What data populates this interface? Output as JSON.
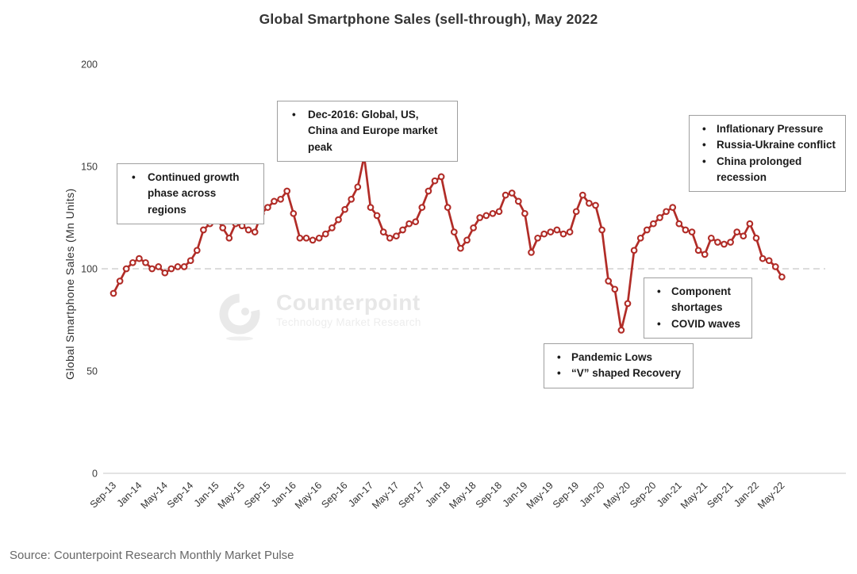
{
  "title": "Global Smartphone Sales (sell-through), May 2022",
  "source_note": "Source: Counterpoint Research Monthly Market Pulse",
  "watermark": {
    "brand": "Counterpoint",
    "tagline": "Technology Market Research"
  },
  "annotations": {
    "growth": {
      "items": [
        "Continued growth phase across regions"
      ]
    },
    "dec2016_peak": {
      "items": [
        "Dec-2016: Global, US, China and Europe market peak"
      ]
    },
    "inflation": {
      "items": [
        "Inflationary Pressure",
        "Russia-Ukraine conflict",
        "China prolonged recession"
      ]
    },
    "shortages": {
      "items": [
        "Component shortages",
        "COVID waves"
      ]
    },
    "pandemic": {
      "items": [
        "Pandemic Lows",
        "“V” shaped Recovery"
      ]
    }
  },
  "chart_data": {
    "type": "line",
    "title": "Global Smartphone Sales (sell-through), May 2022",
    "xlabel": "",
    "ylabel": "Global Smartphone Sales (Mn Units)",
    "ylim": [
      0,
      200
    ],
    "y_ticks": [
      0,
      50,
      100,
      150,
      200
    ],
    "grid": "off",
    "legend": "none",
    "marker": "open-circle",
    "series_color": "#b12c27",
    "reference_line": {
      "value": 100,
      "style": "dashed",
      "color": "#c7c7c7"
    },
    "x_tick_every": 4,
    "x_tick_labels": [
      "Sep-13",
      "Jan-14",
      "May-14",
      "Sep-14",
      "Jan-15",
      "May-15",
      "Sep-15",
      "Jan-16",
      "May-16",
      "Sep-16",
      "Jan-17",
      "May-17",
      "Sep-17",
      "Jan-18",
      "May-18",
      "Sep-18",
      "Jan-19",
      "May-19",
      "Sep-19",
      "Jan-20",
      "May-20",
      "Sep-20",
      "Jan-21",
      "May-21",
      "Sep-21",
      "Jan-22",
      "May-22"
    ],
    "months": [
      "Sep-13",
      "Oct-13",
      "Nov-13",
      "Dec-13",
      "Jan-14",
      "Feb-14",
      "Mar-14",
      "Apr-14",
      "May-14",
      "Jun-14",
      "Jul-14",
      "Aug-14",
      "Sep-14",
      "Oct-14",
      "Nov-14",
      "Dec-14",
      "Jan-15",
      "Feb-15",
      "Mar-15",
      "Apr-15",
      "May-15",
      "Jun-15",
      "Jul-15",
      "Aug-15",
      "Sep-15",
      "Oct-15",
      "Nov-15",
      "Dec-15",
      "Jan-16",
      "Feb-16",
      "Mar-16",
      "Apr-16",
      "May-16",
      "Jun-16",
      "Jul-16",
      "Aug-16",
      "Sep-16",
      "Oct-16",
      "Nov-16",
      "Dec-16",
      "Jan-17",
      "Feb-17",
      "Mar-17",
      "Apr-17",
      "May-17",
      "Jun-17",
      "Jul-17",
      "Aug-17",
      "Sep-17",
      "Oct-17",
      "Nov-17",
      "Dec-17",
      "Jan-18",
      "Feb-18",
      "Mar-18",
      "Apr-18",
      "May-18",
      "Jun-18",
      "Jul-18",
      "Aug-18",
      "Sep-18",
      "Oct-18",
      "Nov-18",
      "Dec-18",
      "Jan-19",
      "Feb-19",
      "Mar-19",
      "Apr-19",
      "May-19",
      "Jun-19",
      "Jul-19",
      "Aug-19",
      "Sep-19",
      "Oct-19",
      "Nov-19",
      "Dec-19",
      "Jan-20",
      "Feb-20",
      "Mar-20",
      "Apr-20",
      "May-20",
      "Jun-20",
      "Jul-20",
      "Aug-20",
      "Sep-20",
      "Oct-20",
      "Nov-20",
      "Dec-20",
      "Jan-21",
      "Feb-21",
      "Mar-21",
      "Apr-21",
      "May-21",
      "Jun-21",
      "Jul-21",
      "Aug-21",
      "Sep-21",
      "Oct-21",
      "Nov-21",
      "Dec-21",
      "Jan-22",
      "Feb-22",
      "Mar-22",
      "Apr-22",
      "May-22"
    ],
    "values": [
      88,
      94,
      100,
      103,
      105,
      103,
      100,
      101,
      98,
      100,
      101,
      101,
      104,
      109,
      119,
      122,
      125,
      120,
      115,
      122,
      121,
      119,
      118,
      127,
      130,
      133,
      134,
      138,
      127,
      115,
      115,
      114,
      115,
      117,
      120,
      124,
      129,
      134,
      140,
      155,
      130,
      126,
      118,
      115,
      116,
      119,
      122,
      123,
      130,
      138,
      143,
      145,
      130,
      118,
      110,
      114,
      120,
      125,
      126,
      127,
      128,
      136,
      137,
      133,
      127,
      108,
      115,
      117,
      118,
      119,
      117,
      118,
      128,
      136,
      132,
      131,
      119,
      94,
      90,
      70,
      83,
      109,
      115,
      119,
      122,
      125,
      128,
      130,
      122,
      119,
      118,
      109,
      107,
      115,
      113,
      112,
      113,
      118,
      116,
      122,
      115,
      105,
      104,
      101,
      96
    ]
  }
}
